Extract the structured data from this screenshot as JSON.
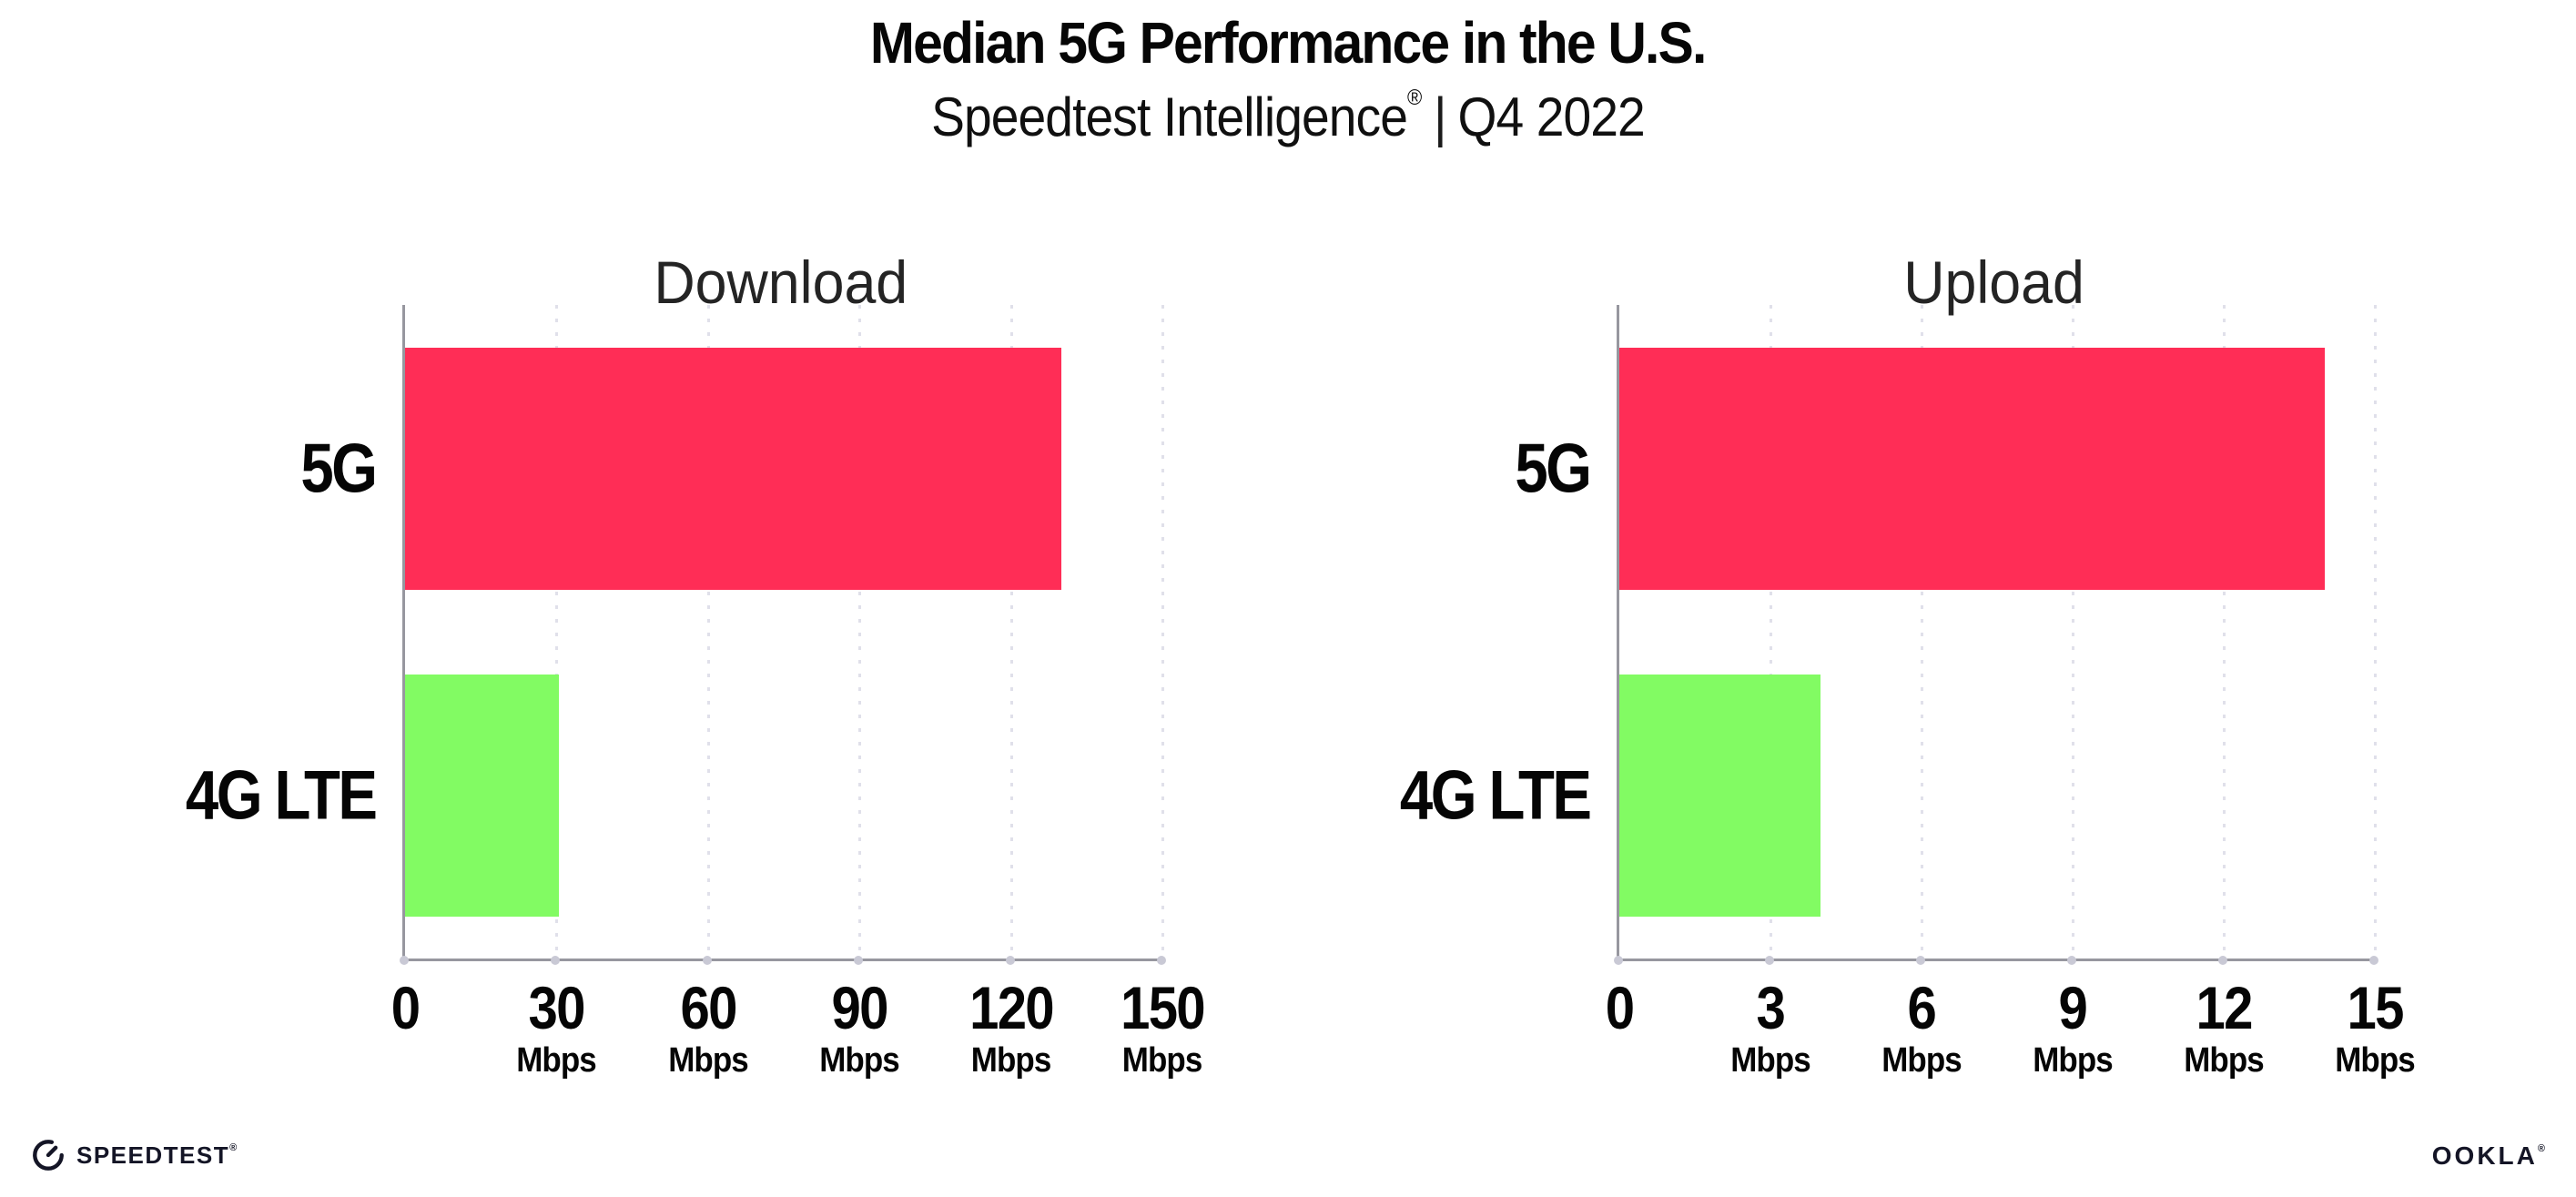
{
  "header": {
    "title": "Median 5G Performance in the U.S.",
    "subtitle": {
      "brand": "Speedtest Intelligence",
      "registered_mark": "®",
      "separator": "|",
      "period": "Q4 2022"
    }
  },
  "chart_data": [
    {
      "type": "bar",
      "orientation": "horizontal",
      "title": "Download",
      "categories": [
        "5G",
        "4G LTE"
      ],
      "values": [
        130,
        30.5
      ],
      "unit": "Mbps",
      "xlim": [
        0,
        150
      ],
      "xticks": [
        0,
        30,
        60,
        90,
        120,
        150
      ],
      "tick_unit_suffix": "Mbps",
      "grid": "dotted-vertical",
      "legend": "none",
      "bar_colors": [
        "#ff2d56",
        "#82fb63"
      ]
    },
    {
      "type": "bar",
      "orientation": "horizontal",
      "title": "Upload",
      "categories": [
        "5G",
        "4G LTE"
      ],
      "values": [
        14,
        4
      ],
      "unit": "Mbps",
      "xlim": [
        0,
        15
      ],
      "xticks": [
        0,
        3,
        6,
        9,
        12,
        15
      ],
      "tick_unit_suffix": "Mbps",
      "grid": "dotted-vertical",
      "legend": "none",
      "bar_colors": [
        "#ff2d56",
        "#82fb63"
      ]
    }
  ],
  "footer": {
    "speedtest_logo_text": "SPEEDTEST",
    "speedtest_trademark": "®",
    "ookla_logo_text": "OOKLA",
    "ookla_trademark": "®"
  },
  "colors": {
    "bar_5g": "#ff2d56",
    "bar_4g_lte": "#82fb63",
    "axis": "#97979f",
    "gridline": "#e0e0ea",
    "tick_dot": "#c9c9d5",
    "text": "#000000",
    "logo": "#141526"
  }
}
